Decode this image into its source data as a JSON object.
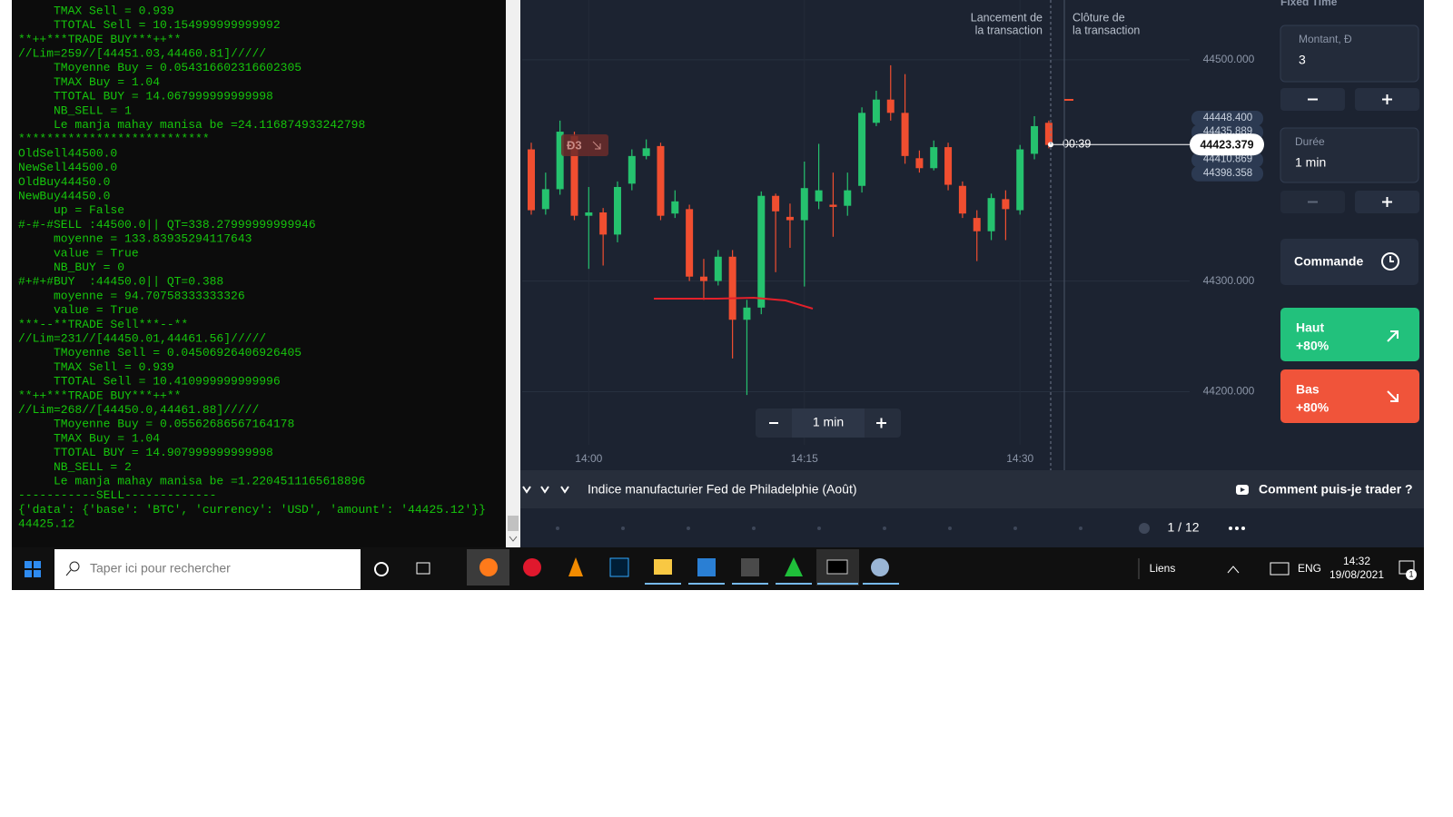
{
  "terminal": {
    "lines": [
      "     TMAX Sell = 0.939",
      "     TTOTAL Sell = 10.154999999999992",
      "**++***TRADE BUY***++**",
      "//Lim=259//[44451.03,44460.81]/////",
      "     TMoyenne Buy = 0.054316602316602305",
      "     TMAX Buy = 1.04",
      "     TTOTAL BUY = 14.067999999999998",
      "     NB_SELL = 1",
      "     Le manja mahay manisa be =24.116874933242798",
      "***************************",
      "OldSell44500.0",
      "NewSell44500.0",
      "OldBuy44450.0",
      "NewBuy44450.0",
      "     up = False",
      "#-#-#SELL :44500.0|| QT=338.27999999999946",
      "     moyenne = 133.83935294117643",
      "     value = True",
      "     NB_BUY = 0",
      "#+#+#BUY  :44450.0|| QT=0.388",
      "     moyenne = 94.70758333333326",
      "     value = True",
      "***--**TRADE Sell***--**",
      "//Lim=231//[44450.01,44461.56]/////",
      "     TMoyenne Sell = 0.04506926406926405",
      "     TMAX Sell = 0.939",
      "     TTOTAL Sell = 10.410999999999996",
      "**++***TRADE BUY***++**",
      "//Lim=268//[44450.0,44461.88]/////",
      "     TMoyenne Buy = 0.05562686567164178",
      "     TMAX Buy = 1.04",
      "     TTOTAL BUY = 14.907999999999998",
      "     NB_SELL = 2",
      "     Le manja mahay manisa be =1.2204511165618896",
      "-----------SELL-------------",
      "{'data': {'base': 'BTC', 'currency': 'USD', 'amount': '44425.12'}}",
      "44425.12"
    ]
  },
  "chart_data": {
    "type": "candlestick",
    "categories": [
      null,
      null,
      null,
      null,
      "14:00",
      null,
      null,
      null,
      null,
      null,
      null,
      null,
      null,
      null,
      null,
      null,
      null,
      null,
      null,
      "14:15",
      null,
      null,
      null,
      null,
      null,
      null,
      null,
      null,
      null,
      null,
      null,
      null,
      null,
      null,
      "14:30",
      null,
      null
    ],
    "open": [
      44419,
      44365,
      44383,
      44431,
      44359,
      44362,
      44342,
      44388,
      44413,
      44422,
      44361,
      44365,
      44304,
      44300,
      44322,
      44265,
      44276,
      44377,
      44358,
      44355,
      44372,
      44369,
      44368,
      44386,
      44443,
      44464,
      44452,
      44411,
      44402,
      44421,
      44386,
      44357,
      44345,
      44374,
      44364,
      44415,
      44443
    ],
    "high": [
      44425,
      44398,
      44445,
      44435,
      44385,
      44366,
      44390,
      44419,
      44428,
      44425,
      44382,
      44369,
      44320,
      44328,
      44328,
      44283,
      44381,
      44379,
      44370,
      44408,
      44424,
      44398,
      44398,
      44457,
      44472,
      44495,
      44487,
      44418,
      44427,
      44425,
      44390,
      44364,
      44379,
      44382,
      44423,
      44449,
      44445
    ],
    "low": [
      44360,
      44360,
      44378,
      44355,
      44311,
      44314,
      44335,
      44382,
      44410,
      44355,
      44357,
      44300,
      44283,
      44296,
      44230,
      44197,
      44270,
      44308,
      44330,
      44295,
      44365,
      44340,
      44359,
      44380,
      44440,
      44445,
      44406,
      44398,
      44400,
      44382,
      44357,
      44318,
      44337,
      44337,
      44360,
      44410,
      44420
    ],
    "close": [
      44364,
      44383,
      44435,
      44359,
      44362,
      44342,
      44385,
      44413,
      44420,
      44359,
      44372,
      44304,
      44300,
      44322,
      44265,
      44276,
      44377,
      44363,
      44355,
      44384,
      44382,
      44367,
      44382,
      44452,
      44464,
      44452,
      44413,
      44402,
      44421,
      44387,
      44361,
      44345,
      44375,
      44365,
      44419,
      44440,
      44423
    ],
    "up_color": "#25c26e",
    "down_color": "#f04e30",
    "ylim": [
      44129,
      44554
    ],
    "yticks": [
      {
        "value": 44200,
        "label": "44200.000"
      },
      {
        "value": 44300,
        "label": "44300.000"
      },
      {
        "value": 44500,
        "label": "44500.000"
      }
    ],
    "grid": true,
    "price_tags": [
      "44448.400",
      "44435.889",
      "44423.379",
      "44410.869",
      "44398.358"
    ],
    "current_price": {
      "value": 44423.379,
      "label": "44423.379"
    },
    "timer": "00:39",
    "launch_label": [
      "Lancement de",
      "la transaction"
    ],
    "close_label": [
      "Clôture de",
      "la transaction"
    ],
    "badge": "Đ3",
    "zoom": "1 min"
  },
  "panel": {
    "mode": "Fixed Time",
    "amount_label": "Montant, Đ",
    "amount": "3",
    "duration_label": "Durée",
    "duration": "1 min",
    "order": "Commande",
    "up": {
      "label": "Haut",
      "payout": "+80%"
    },
    "down": {
      "label": "Bas",
      "payout": "+80%"
    }
  },
  "bottom_bar": {
    "news": "Indice manufacturier Fed de Philadelphie (Août)",
    "help": "Comment puis-je trader ?",
    "pager": "1 / 12"
  },
  "taskbar": {
    "search": "Taper ici pour rechercher",
    "links": "Liens",
    "language": "ENG",
    "time": "14:32",
    "date": "19/08/2021",
    "notifications": "1"
  }
}
